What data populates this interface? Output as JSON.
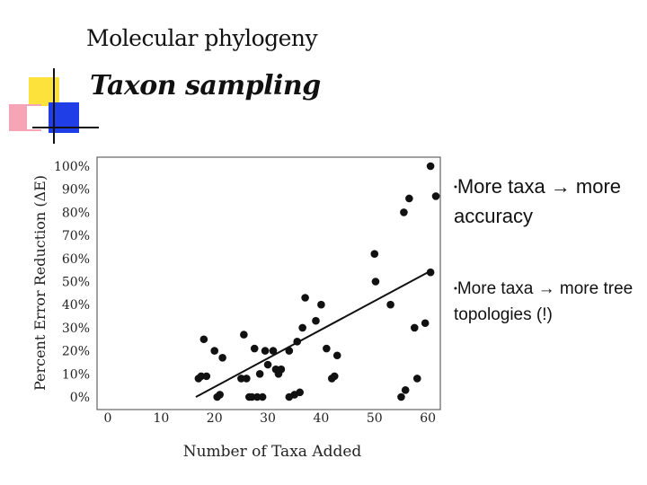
{
  "slide": {
    "subtitle": "Molecular phylogeny",
    "title": "Taxon sampling",
    "bullets": [
      {
        "marker": "•",
        "text": "More taxa → more accuracy"
      },
      {
        "marker": "•",
        "text": "More taxa → more tree topologies (!)"
      }
    ]
  },
  "colors": {
    "accent_yellow": "#fce23a",
    "accent_blue": "#1f3ee8",
    "accent_pink": "#f5a5b5",
    "points": "#111111"
  },
  "chart_data": {
    "type": "scatter",
    "xlabel": "Number of Taxa Added",
    "ylabel": "Percent Error Reduction (ΔE)",
    "xlim": [
      0,
      62
    ],
    "ylim": [
      0,
      100
    ],
    "x_ticks": [
      "0",
      "10",
      "20",
      "30",
      "40",
      "50",
      "60"
    ],
    "y_ticks": [
      "0%",
      "10%",
      "20%",
      "30%",
      "40%",
      "50%",
      "60%",
      "70%",
      "80%",
      "90%",
      "100%"
    ],
    "points": [
      [
        17,
        8
      ],
      [
        17.5,
        9
      ],
      [
        18,
        25
      ],
      [
        18.5,
        9
      ],
      [
        20,
        20
      ],
      [
        20.5,
        0
      ],
      [
        21,
        1
      ],
      [
        21.5,
        17
      ],
      [
        25,
        8
      ],
      [
        25.5,
        27
      ],
      [
        26,
        8
      ],
      [
        26.5,
        0
      ],
      [
        27,
        0
      ],
      [
        27.5,
        21
      ],
      [
        28,
        0
      ],
      [
        29,
        0
      ],
      [
        28.5,
        10
      ],
      [
        29.5,
        20
      ],
      [
        30,
        14
      ],
      [
        31,
        20
      ],
      [
        31.5,
        12
      ],
      [
        32,
        10
      ],
      [
        32.5,
        12
      ],
      [
        34,
        0
      ],
      [
        34,
        20
      ],
      [
        35,
        1
      ],
      [
        35.5,
        24
      ],
      [
        36,
        2
      ],
      [
        36.5,
        30
      ],
      [
        37,
        43
      ],
      [
        39,
        33
      ],
      [
        40,
        40
      ],
      [
        41,
        21
      ],
      [
        42,
        8
      ],
      [
        42.5,
        9
      ],
      [
        43,
        18
      ],
      [
        50,
        62
      ],
      [
        50.2,
        50
      ],
      [
        53,
        40
      ],
      [
        55,
        0
      ],
      [
        55.5,
        80
      ],
      [
        55.8,
        3
      ],
      [
        56.5,
        86
      ],
      [
        57.5,
        30
      ],
      [
        58,
        8
      ],
      [
        59.5,
        32
      ],
      [
        60.5,
        54
      ],
      [
        60.5,
        100
      ],
      [
        61.5,
        87
      ]
    ],
    "trend_line": {
      "x": [
        16.5,
        60
      ],
      "y": [
        0,
        54
      ]
    },
    "grid": false,
    "legend": "none"
  }
}
